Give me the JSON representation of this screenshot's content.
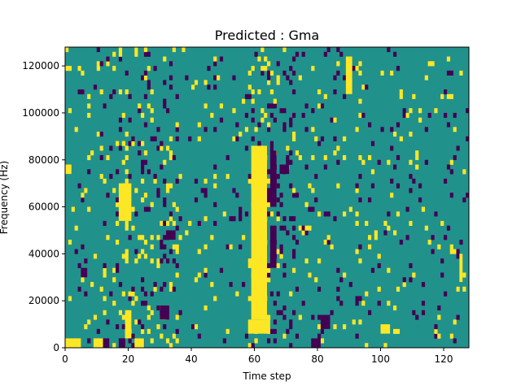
{
  "chart_data": {
    "type": "heatmap",
    "title": "Predicted : Gma",
    "xlabel": "Time step",
    "ylabel": "Frequency (Hz)",
    "xlim": [
      0,
      128
    ],
    "ylim": [
      0,
      128000
    ],
    "x_ticks": [
      0,
      20,
      40,
      60,
      80,
      100,
      120
    ],
    "y_ticks": [
      0,
      20000,
      40000,
      60000,
      80000,
      100000,
      120000
    ],
    "x_tick_labels": [
      "0",
      "20",
      "40",
      "60",
      "80",
      "100",
      "120"
    ],
    "y_tick_labels": [
      "0",
      "20000",
      "40000",
      "60000",
      "80000",
      "100000",
      "120000"
    ],
    "n_time_steps": 128,
    "n_freq_bins": 64,
    "grid": false,
    "colors": {
      "background": "#21918c",
      "high": "#fde725",
      "low": "#440154"
    },
    "regions": [
      {
        "level": "high",
        "x0": 0,
        "x1": 5,
        "y0": 0,
        "y1": 4000
      },
      {
        "level": "high",
        "x0": 0,
        "x1": 2,
        "y0": 74000,
        "y1": 78000
      },
      {
        "level": "high",
        "x0": 58,
        "x1": 65,
        "y0": 6000,
        "y1": 12000
      },
      {
        "level": "high",
        "x0": 59,
        "x1": 64,
        "y0": 12000,
        "y1": 86000
      },
      {
        "level": "high",
        "x0": 17,
        "x1": 21,
        "y0": 54000,
        "y1": 70000
      },
      {
        "level": "high",
        "x0": 19,
        "x1": 21,
        "y0": 4000,
        "y1": 16000
      },
      {
        "level": "high",
        "x0": 9,
        "x1": 12,
        "y0": 0,
        "y1": 4000
      },
      {
        "level": "high",
        "x0": 22,
        "x1": 25,
        "y0": 0,
        "y1": 4000
      },
      {
        "level": "high",
        "x0": 89,
        "x1": 91,
        "y0": 108000,
        "y1": 124000
      },
      {
        "level": "high",
        "x0": 100,
        "x1": 103,
        "y0": 6000,
        "y1": 10000
      },
      {
        "level": "high",
        "x0": 125,
        "x1": 126,
        "y0": 28000,
        "y1": 40000
      },
      {
        "level": "low",
        "x0": 30,
        "x1": 33,
        "y0": 12000,
        "y1": 18000
      },
      {
        "level": "low",
        "x0": 17,
        "x1": 19,
        "y0": 0,
        "y1": 4000
      },
      {
        "level": "low",
        "x0": 65,
        "x1": 67,
        "y0": 34000,
        "y1": 52000
      },
      {
        "level": "low",
        "x0": 68,
        "x1": 71,
        "y0": 74000,
        "y1": 78000
      },
      {
        "level": "low",
        "x0": 81,
        "x1": 84,
        "y0": 8000,
        "y1": 14000
      },
      {
        "level": "low",
        "x0": 78,
        "x1": 81,
        "y0": 0,
        "y1": 4000
      },
      {
        "level": "low",
        "x0": 32,
        "x1": 35,
        "y0": 46000,
        "y1": 50000
      },
      {
        "level": "low",
        "x0": 5,
        "x1": 7,
        "y0": 30000,
        "y1": 34000
      },
      {
        "level": "low",
        "x0": 12,
        "x1": 14,
        "y0": 0,
        "y1": 4000
      },
      {
        "level": "low",
        "x0": 65,
        "x1": 67,
        "y0": 60000,
        "y1": 84000
      }
    ]
  }
}
